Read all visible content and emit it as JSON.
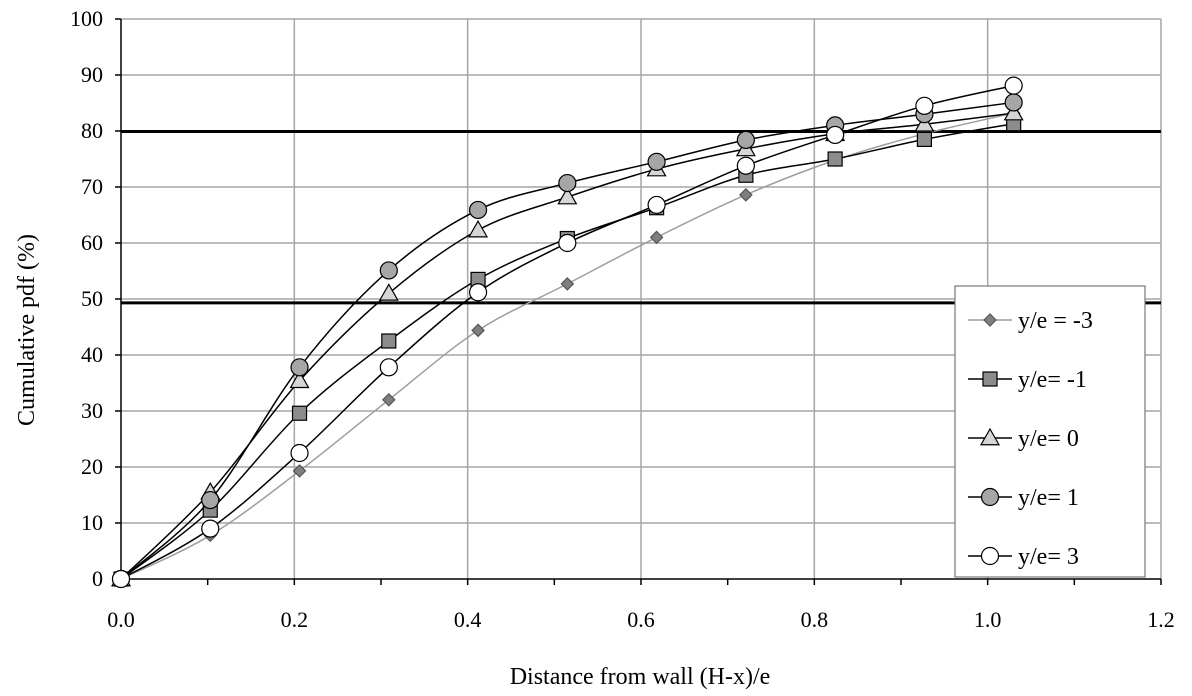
{
  "chart_data": {
    "type": "line",
    "title": "",
    "xlabel": "Distance from wall (H-x)/e",
    "ylabel": "Cumulative pdf (%)",
    "xlim": [
      0,
      1.2
    ],
    "ylim": [
      0,
      100
    ],
    "x_ticks": [
      "0.0",
      "0.2",
      "0.4",
      "0.6",
      "0.8",
      "1.0",
      "1.2"
    ],
    "y_ticks": [
      "0",
      "10",
      "20",
      "30",
      "40",
      "50",
      "60",
      "70",
      "80",
      "90",
      "100"
    ],
    "grid": true,
    "legend_position": "right",
    "reference_lines": [
      49.3,
      79.9
    ],
    "x": [
      0,
      0.103,
      0.206,
      0.309,
      0.412,
      0.515,
      0.618,
      0.721,
      0.824,
      0.927,
      1.03
    ],
    "series": [
      {
        "name": "y/e = -3",
        "marker": "diamond",
        "marker_fill": "#7f7f7f",
        "line_color": "#9e9e9e",
        "values": [
          0,
          7.8,
          19.3,
          32.0,
          44.4,
          52.7,
          61.0,
          68.6,
          74.8,
          79.5,
          83.2
        ]
      },
      {
        "name": "y/e= -1",
        "marker": "square",
        "marker_fill": "#8c8c8c",
        "line_color": "#000000",
        "values": [
          0,
          12.3,
          29.6,
          42.5,
          53.5,
          60.8,
          66.3,
          72.1,
          75.0,
          78.5,
          81.3
        ]
      },
      {
        "name": "y/e= 0",
        "marker": "triangle",
        "marker_fill": "#d6d6d6",
        "line_color": "#000000",
        "values": [
          0,
          15.5,
          35.4,
          51.0,
          62.3,
          68.2,
          73.2,
          76.8,
          79.5,
          81.2,
          83.2
        ]
      },
      {
        "name": "y/e= 1",
        "marker": "circle",
        "marker_fill": "#a6a6a6",
        "line_color": "#000000",
        "values": [
          0,
          14.1,
          37.8,
          55.1,
          65.9,
          70.7,
          74.5,
          78.4,
          81.0,
          83.0,
          85.1
        ]
      },
      {
        "name": "y/e= 3",
        "marker": "circle-open",
        "marker_fill": "#ffffff",
        "line_color": "#000000",
        "values": [
          0,
          9.0,
          22.5,
          37.8,
          51.2,
          60.0,
          66.8,
          73.8,
          79.3,
          84.5,
          88.1
        ]
      }
    ]
  }
}
